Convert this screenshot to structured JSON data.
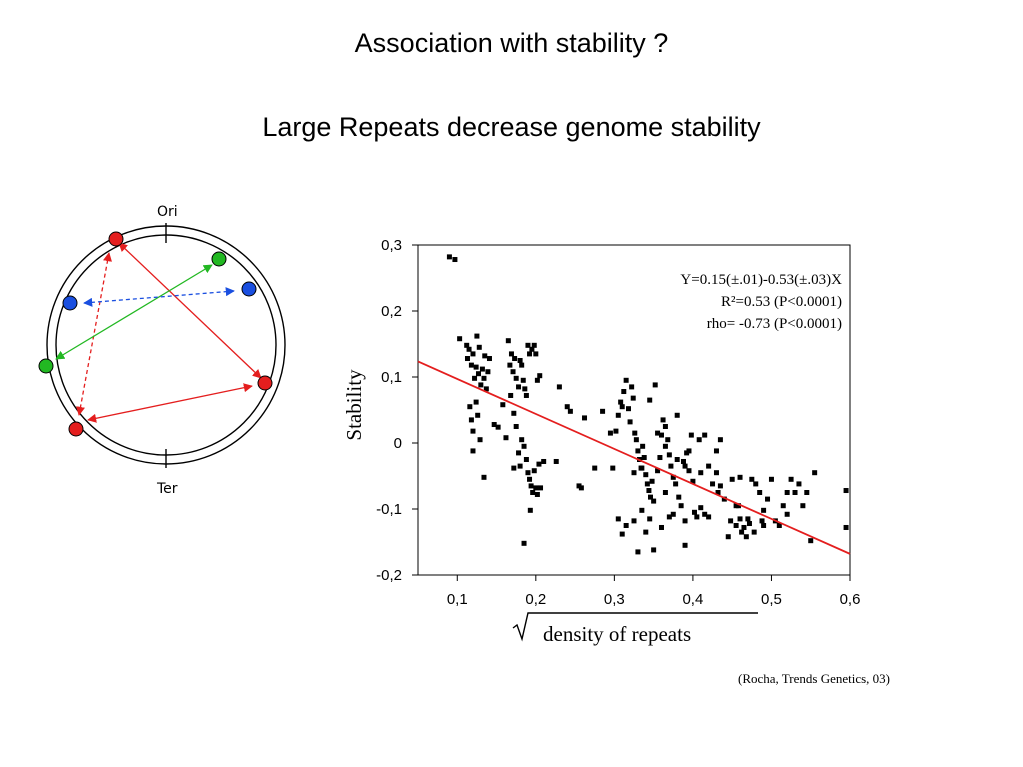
{
  "slide": {
    "title": "Association with stability ?",
    "subtitle": "Large Repeats decrease genome stability",
    "citation": "(Rocha, Trends Genetics, 03)"
  },
  "diagram": {
    "ori_label": "Ori",
    "ter_label": "Ter",
    "colors": {
      "red": "#e41e1e",
      "green": "#22b822",
      "blue": "#1a4fe0"
    }
  },
  "chart_data": {
    "type": "scatter",
    "xlabel_prefix": "√",
    "xlabel": "density of repeats",
    "ylabel": "Stability",
    "xlim": [
      0.05,
      0.6
    ],
    "ylim": [
      -0.2,
      0.3
    ],
    "x_ticks": [
      "0,1",
      "0,2",
      "0,3",
      "0,4",
      "0,5",
      "0,6"
    ],
    "y_ticks": [
      "0,3",
      "0,2",
      "0,1",
      "0",
      "-0,1",
      "-0,2"
    ],
    "stats": {
      "equation": "Y=0.15(±.01)-0.53(±.03)X",
      "r2": "R²=0.53 (P<0.0001)",
      "rho": "rho= -0.73 (P<0.0001)"
    },
    "fit_line": {
      "intercept": 0.15,
      "slope": -0.53,
      "color": "#e41e1e"
    },
    "points": [
      [
        0.09,
        0.282
      ],
      [
        0.097,
        0.278
      ],
      [
        0.103,
        0.158
      ],
      [
        0.112,
        0.148
      ],
      [
        0.113,
        0.128
      ],
      [
        0.115,
        0.142
      ],
      [
        0.118,
        0.118
      ],
      [
        0.12,
        0.135
      ],
      [
        0.122,
        0.098
      ],
      [
        0.124,
        0.115
      ],
      [
        0.125,
        0.162
      ],
      [
        0.127,
        0.105
      ],
      [
        0.128,
        0.145
      ],
      [
        0.13,
        0.088
      ],
      [
        0.132,
        0.112
      ],
      [
        0.134,
        0.098
      ],
      [
        0.135,
        0.132
      ],
      [
        0.137,
        0.082
      ],
      [
        0.139,
        0.108
      ],
      [
        0.141,
        0.128
      ],
      [
        0.116,
        0.055
      ],
      [
        0.118,
        0.035
      ],
      [
        0.12,
        0.018
      ],
      [
        0.124,
        0.062
      ],
      [
        0.126,
        0.042
      ],
      [
        0.129,
        0.005
      ],
      [
        0.12,
        -0.012
      ],
      [
        0.134,
        -0.052
      ],
      [
        0.147,
        0.028
      ],
      [
        0.152,
        0.024
      ],
      [
        0.158,
        0.058
      ],
      [
        0.165,
        0.155
      ],
      [
        0.167,
        0.118
      ],
      [
        0.169,
        0.135
      ],
      [
        0.171,
        0.108
      ],
      [
        0.173,
        0.128
      ],
      [
        0.175,
        0.098
      ],
      [
        0.178,
        0.085
      ],
      [
        0.18,
        0.125
      ],
      [
        0.182,
        0.118
      ],
      [
        0.184,
        0.095
      ],
      [
        0.186,
        0.082
      ],
      [
        0.188,
        0.072
      ],
      [
        0.19,
        0.148
      ],
      [
        0.192,
        0.135
      ],
      [
        0.195,
        0.142
      ],
      [
        0.198,
        0.148
      ],
      [
        0.2,
        0.135
      ],
      [
        0.202,
        0.095
      ],
      [
        0.205,
        0.102
      ],
      [
        0.168,
        0.072
      ],
      [
        0.172,
        0.045
      ],
      [
        0.175,
        0.025
      ],
      [
        0.178,
        -0.015
      ],
      [
        0.18,
        -0.035
      ],
      [
        0.182,
        0.005
      ],
      [
        0.185,
        -0.005
      ],
      [
        0.188,
        -0.025
      ],
      [
        0.19,
        -0.045
      ],
      [
        0.192,
        -0.055
      ],
      [
        0.194,
        -0.065
      ],
      [
        0.196,
        -0.075
      ],
      [
        0.198,
        -0.042
      ],
      [
        0.2,
        -0.068
      ],
      [
        0.202,
        -0.078
      ],
      [
        0.204,
        -0.032
      ],
      [
        0.206,
        -0.068
      ],
      [
        0.21,
        -0.028
      ],
      [
        0.185,
        -0.152
      ],
      [
        0.193,
        -0.102
      ],
      [
        0.172,
        -0.038
      ],
      [
        0.162,
        0.008
      ],
      [
        0.226,
        -0.028
      ],
      [
        0.23,
        0.085
      ],
      [
        0.24,
        0.055
      ],
      [
        0.244,
        0.048
      ],
      [
        0.255,
        -0.065
      ],
      [
        0.258,
        -0.068
      ],
      [
        0.262,
        0.038
      ],
      [
        0.275,
        -0.038
      ],
      [
        0.285,
        0.048
      ],
      [
        0.295,
        0.015
      ],
      [
        0.298,
        -0.038
      ],
      [
        0.302,
        0.018
      ],
      [
        0.305,
        0.042
      ],
      [
        0.308,
        0.062
      ],
      [
        0.31,
        0.055
      ],
      [
        0.312,
        0.078
      ],
      [
        0.315,
        0.095
      ],
      [
        0.318,
        0.052
      ],
      [
        0.32,
        0.032
      ],
      [
        0.322,
        0.085
      ],
      [
        0.324,
        0.068
      ],
      [
        0.326,
        0.015
      ],
      [
        0.328,
        0.005
      ],
      [
        0.33,
        -0.012
      ],
      [
        0.332,
        -0.025
      ],
      [
        0.334,
        -0.038
      ],
      [
        0.336,
        -0.005
      ],
      [
        0.338,
        -0.022
      ],
      [
        0.34,
        -0.048
      ],
      [
        0.342,
        -0.062
      ],
      [
        0.344,
        -0.072
      ],
      [
        0.346,
        -0.082
      ],
      [
        0.348,
        -0.058
      ],
      [
        0.35,
        -0.088
      ],
      [
        0.352,
        0.088
      ],
      [
        0.355,
        -0.042
      ],
      [
        0.358,
        -0.022
      ],
      [
        0.36,
        0.012
      ],
      [
        0.362,
        0.035
      ],
      [
        0.365,
        0.025
      ],
      [
        0.368,
        0.005
      ],
      [
        0.37,
        -0.018
      ],
      [
        0.372,
        -0.035
      ],
      [
        0.375,
        -0.052
      ],
      [
        0.378,
        -0.062
      ],
      [
        0.38,
        0.042
      ],
      [
        0.382,
        -0.082
      ],
      [
        0.385,
        -0.095
      ],
      [
        0.388,
        -0.028
      ],
      [
        0.39,
        -0.035
      ],
      [
        0.392,
        -0.015
      ],
      [
        0.395,
        -0.042
      ],
      [
        0.398,
        0.012
      ],
      [
        0.4,
        -0.058
      ],
      [
        0.402,
        -0.105
      ],
      [
        0.405,
        -0.112
      ],
      [
        0.408,
        0.005
      ],
      [
        0.41,
        -0.098
      ],
      [
        0.415,
        -0.108
      ],
      [
        0.42,
        -0.112
      ],
      [
        0.425,
        -0.062
      ],
      [
        0.43,
        -0.045
      ],
      [
        0.432,
        -0.075
      ],
      [
        0.435,
        -0.065
      ],
      [
        0.44,
        -0.085
      ],
      [
        0.445,
        -0.142
      ],
      [
        0.448,
        -0.118
      ],
      [
        0.45,
        -0.055
      ],
      [
        0.455,
        -0.125
      ],
      [
        0.458,
        -0.095
      ],
      [
        0.46,
        -0.115
      ],
      [
        0.462,
        -0.135
      ],
      [
        0.465,
        -0.128
      ],
      [
        0.468,
        -0.142
      ],
      [
        0.47,
        -0.115
      ],
      [
        0.472,
        -0.122
      ],
      [
        0.475,
        -0.055
      ],
      [
        0.478,
        -0.135
      ],
      [
        0.48,
        -0.062
      ],
      [
        0.485,
        -0.075
      ],
      [
        0.488,
        -0.118
      ],
      [
        0.49,
        -0.102
      ],
      [
        0.495,
        -0.085
      ],
      [
        0.5,
        -0.055
      ],
      [
        0.505,
        -0.118
      ],
      [
        0.51,
        -0.125
      ],
      [
        0.515,
        -0.095
      ],
      [
        0.52,
        -0.075
      ],
      [
        0.525,
        -0.055
      ],
      [
        0.53,
        -0.075
      ],
      [
        0.535,
        -0.062
      ],
      [
        0.54,
        -0.095
      ],
      [
        0.545,
        -0.075
      ],
      [
        0.55,
        -0.148
      ],
      [
        0.555,
        -0.045
      ],
      [
        0.595,
        -0.072
      ],
      [
        0.595,
        -0.128
      ],
      [
        0.305,
        -0.115
      ],
      [
        0.315,
        -0.125
      ],
      [
        0.325,
        -0.118
      ],
      [
        0.335,
        -0.102
      ],
      [
        0.34,
        -0.135
      ],
      [
        0.345,
        -0.115
      ],
      [
        0.35,
        -0.162
      ],
      [
        0.36,
        -0.128
      ],
      [
        0.37,
        -0.112
      ],
      [
        0.375,
        -0.108
      ],
      [
        0.39,
        -0.118
      ],
      [
        0.33,
        -0.165
      ],
      [
        0.31,
        -0.138
      ],
      [
        0.325,
        -0.045
      ],
      [
        0.355,
        0.015
      ],
      [
        0.365,
        -0.005
      ],
      [
        0.365,
        -0.075
      ],
      [
        0.38,
        -0.025
      ],
      [
        0.39,
        -0.155
      ],
      [
        0.42,
        -0.035
      ],
      [
        0.435,
        0.005
      ],
      [
        0.43,
        -0.012
      ],
      [
        0.41,
        -0.045
      ],
      [
        0.46,
        -0.052
      ],
      [
        0.49,
        -0.125
      ],
      [
        0.52,
        -0.108
      ],
      [
        0.415,
        0.012
      ],
      [
        0.345,
        0.065
      ],
      [
        0.335,
        -0.038
      ],
      [
        0.395,
        -0.012
      ],
      [
        0.455,
        -0.095
      ]
    ]
  }
}
